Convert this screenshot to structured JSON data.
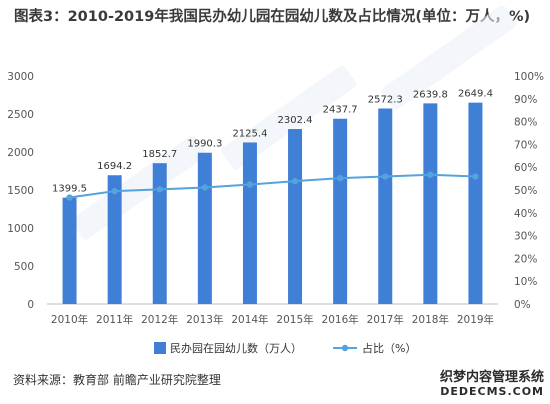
{
  "title": "图表3：2010-2019年我国民办幼儿园在园幼儿数及占比情况(单位：万人，%)",
  "source": "资料来源：教育部 前瞻产业研究院整理",
  "watermark": {
    "line1": "织梦内容管理系统",
    "line2": "DEDECMS.COM"
  },
  "chart_data": {
    "type": "bar",
    "categories": [
      "2010年",
      "2011年",
      "2012年",
      "2013年",
      "2014年",
      "2015年",
      "2016年",
      "2017年",
      "2018年",
      "2019年"
    ],
    "series": [
      {
        "name": "民办园在园幼儿数（万人）",
        "type": "bar",
        "axis": "left",
        "values": [
          1399.5,
          1694.2,
          1852.7,
          1990.3,
          2125.4,
          2302.4,
          2437.7,
          2572.3,
          2639.8,
          2649.4
        ],
        "labels": [
          "1399.5",
          "1694.2",
          "1852.7",
          "1990.3",
          "2125.4",
          "2302.4",
          "2437.7",
          "2572.3",
          "2639.8",
          "2649.4"
        ]
      },
      {
        "name": "占比（%）",
        "type": "line",
        "axis": "right",
        "values": [
          46.7,
          49.5,
          50.3,
          51.1,
          52.4,
          53.9,
          55.2,
          55.9,
          56.7,
          55.9
        ]
      }
    ],
    "y_left": {
      "min": 0,
      "max": 3000,
      "ticks": [
        "0",
        "500",
        "1000",
        "1500",
        "2000",
        "2500",
        "3000"
      ]
    },
    "y_right": {
      "min": 0,
      "max": 100,
      "ticks": [
        "0%",
        "10%",
        "20%",
        "30%",
        "40%",
        "50%",
        "60%",
        "70%",
        "80%",
        "90%",
        "100%"
      ]
    },
    "grid": false,
    "legend_position": "bottom",
    "colors": {
      "bar": "#3f7fd6",
      "line": "#54a3de",
      "axis_text": "#555555"
    }
  }
}
